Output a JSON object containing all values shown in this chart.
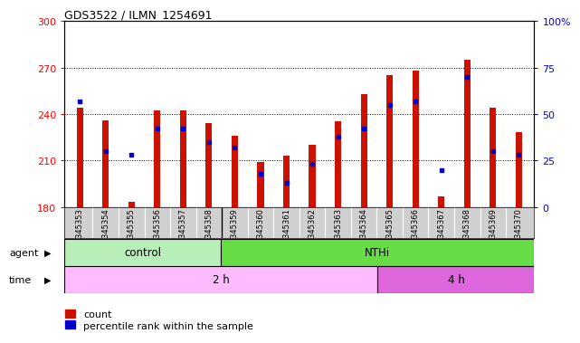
{
  "title": "GDS3522 / ILMN_1254691",
  "samples": [
    "GSM345353",
    "GSM345354",
    "GSM345355",
    "GSM345356",
    "GSM345357",
    "GSM345358",
    "GSM345359",
    "GSM345360",
    "GSM345361",
    "GSM345362",
    "GSM345363",
    "GSM345364",
    "GSM345365",
    "GSM345366",
    "GSM345367",
    "GSM345368",
    "GSM345369",
    "GSM345370"
  ],
  "counts": [
    244,
    236,
    183,
    242,
    242,
    234,
    226,
    209,
    213,
    220,
    235,
    253,
    265,
    268,
    187,
    275,
    244,
    228
  ],
  "percentile_ranks": [
    57,
    30,
    28,
    42,
    42,
    35,
    32,
    18,
    13,
    23,
    38,
    42,
    55,
    57,
    20,
    70,
    30,
    28
  ],
  "ymin": 180,
  "ymax": 300,
  "yticks_left": [
    180,
    210,
    240,
    270,
    300
  ],
  "yticks_right_vals": [
    0,
    25,
    50,
    75,
    100
  ],
  "bar_color": "#cc1100",
  "dot_color": "#0000cc",
  "bg_color": "#d0d0d0",
  "plot_bg": "#ffffff",
  "agent_control_count": 6,
  "agent_nthi_count": 12,
  "time_2h_count": 12,
  "time_4h_count": 6,
  "agent_control_label": "control",
  "agent_nthi_label": "NTHi",
  "time_2h_label": "2 h",
  "time_4h_label": "4 h",
  "agent_ctrl_color": "#b8eeb8",
  "agent_nthi_color": "#66dd44",
  "time_2h_color": "#ffbbff",
  "time_4h_color": "#dd66dd",
  "legend_count_label": "count",
  "legend_pct_label": "percentile rank within the sample"
}
